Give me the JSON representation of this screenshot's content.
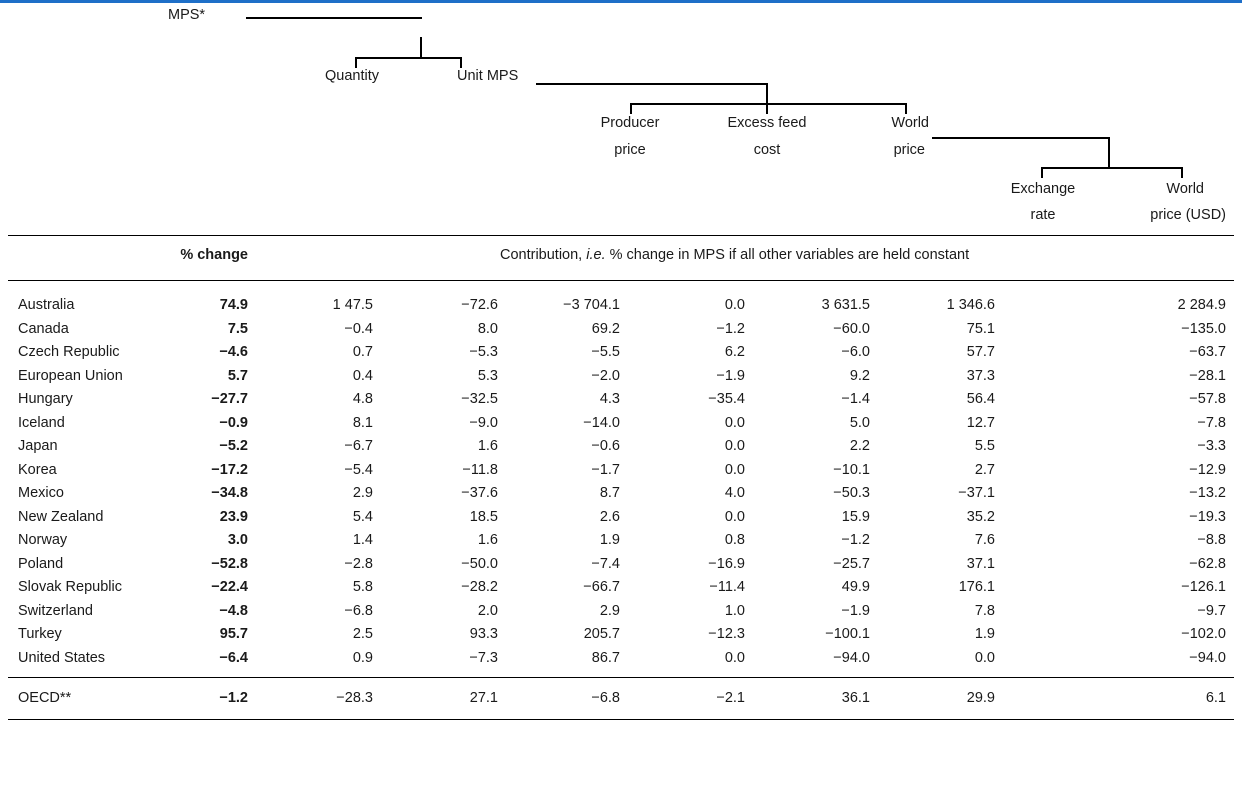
{
  "colors": {
    "top_rule": "#1e6fc8",
    "text": "#1a1a1a"
  },
  "tree": {
    "mps": "MPS*",
    "quantity": "Quantity",
    "unit_mps": "Unit MPS",
    "producer_price_1": "Producer",
    "producer_price_2": "price",
    "excess_feed_1": "Excess feed",
    "excess_feed_2": "cost",
    "world_price_1": "World",
    "world_price_2": "price",
    "exchange_rate_1": "Exchange",
    "exchange_rate_2": "rate",
    "world_price_usd_1": "World",
    "world_price_usd_2": "price (USD)"
  },
  "table": {
    "pct_header": "% change",
    "contrib_header_pre": "Contribution, ",
    "contrib_header_ie": "i.e.",
    "contrib_header_post": " % change in MPS if all other variables are held constant",
    "rows": [
      {
        "country": "Australia",
        "values": [
          "74.9",
          "1 47.5",
          "−72.6",
          "−3 704.1",
          "0.0",
          "3 631.5",
          "1 346.6",
          "2 284.9"
        ]
      },
      {
        "country": "Canada",
        "values": [
          "7.5",
          "−0.4",
          "8.0",
          "69.2",
          "−1.2",
          "−60.0",
          "75.1",
          "−135.0"
        ]
      },
      {
        "country": "Czech Republic",
        "values": [
          "−4.6",
          "0.7",
          "−5.3",
          "−5.5",
          "6.2",
          "−6.0",
          "57.7",
          "−63.7"
        ]
      },
      {
        "country": "European Union",
        "values": [
          "5.7",
          "0.4",
          "5.3",
          "−2.0",
          "−1.9",
          "9.2",
          "37.3",
          "−28.1"
        ]
      },
      {
        "country": "Hungary",
        "values": [
          "−27.7",
          "4.8",
          "−32.5",
          "4.3",
          "−35.4",
          "−1.4",
          "56.4",
          "−57.8"
        ]
      },
      {
        "country": "Iceland",
        "values": [
          "−0.9",
          "8.1",
          "−9.0",
          "−14.0",
          "0.0",
          "5.0",
          "12.7",
          "−7.8"
        ]
      },
      {
        "country": "Japan",
        "values": [
          "−5.2",
          "−6.7",
          "1.6",
          "−0.6",
          "0.0",
          "2.2",
          "5.5",
          "−3.3"
        ]
      },
      {
        "country": "Korea",
        "values": [
          "−17.2",
          "−5.4",
          "−11.8",
          "−1.7",
          "0.0",
          "−10.1",
          "2.7",
          "−12.9"
        ]
      },
      {
        "country": "Mexico",
        "values": [
          "−34.8",
          "2.9",
          "−37.6",
          "8.7",
          "4.0",
          "−50.3",
          "−37.1",
          "−13.2"
        ]
      },
      {
        "country": "New Zealand",
        "values": [
          "23.9",
          "5.4",
          "18.5",
          "2.6",
          "0.0",
          "15.9",
          "35.2",
          "−19.3"
        ]
      },
      {
        "country": "Norway",
        "values": [
          "3.0",
          "1.4",
          "1.6",
          "1.9",
          "0.8",
          "−1.2",
          "7.6",
          "−8.8"
        ]
      },
      {
        "country": "Poland",
        "values": [
          "−52.8",
          "−2.8",
          "−50.0",
          "−7.4",
          "−16.9",
          "−25.7",
          "37.1",
          "−62.8"
        ]
      },
      {
        "country": "Slovak Republic",
        "values": [
          "−22.4",
          "5.8",
          "−28.2",
          "−66.7",
          "−11.4",
          "49.9",
          "176.1",
          "−126.1"
        ]
      },
      {
        "country": "Switzerland",
        "values": [
          "−4.8",
          "−6.8",
          "2.0",
          "2.9",
          "1.0",
          "−1.9",
          "7.8",
          "−9.7"
        ]
      },
      {
        "country": "Turkey",
        "values": [
          "95.7",
          "2.5",
          "93.3",
          "205.7",
          "−12.3",
          "−100.1",
          "1.9",
          "−102.0"
        ]
      },
      {
        "country": "United States",
        "values": [
          "−6.4",
          "0.9",
          "−7.3",
          "86.7",
          "0.0",
          "−94.0",
          "0.0",
          "−94.0"
        ]
      }
    ],
    "oecd": {
      "country": "OECD**",
      "values": [
        "−1.2",
        "−28.3",
        "27.1",
        "−6.8",
        "−2.1",
        "36.1",
        "29.9",
        "6.1"
      ]
    }
  }
}
